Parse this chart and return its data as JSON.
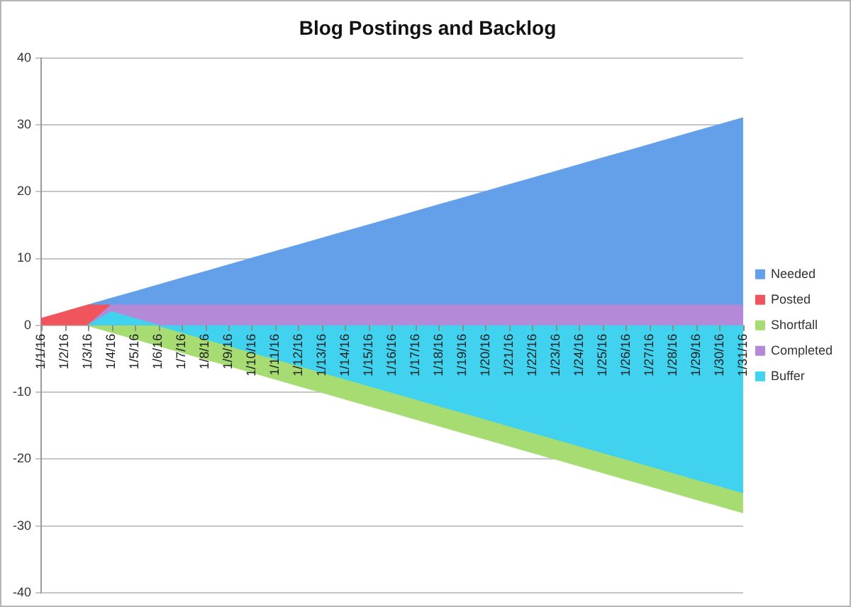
{
  "chart_data": {
    "type": "area",
    "title": "Blog Postings and Backlog",
    "categories": [
      "1/1/16",
      "1/2/16",
      "1/3/16",
      "1/4/16",
      "1/5/16",
      "1/6/16",
      "1/7/16",
      "1/8/16",
      "1/9/16",
      "1/10/16",
      "1/11/16",
      "1/12/16",
      "1/13/16",
      "1/14/16",
      "1/15/16",
      "1/16/16",
      "1/17/16",
      "1/18/16",
      "1/19/16",
      "1/20/16",
      "1/21/16",
      "1/22/16",
      "1/23/16",
      "1/24/16",
      "1/25/16",
      "1/26/16",
      "1/27/16",
      "1/28/16",
      "1/29/16",
      "1/30/16",
      "1/31/16"
    ],
    "series": [
      {
        "name": "Buffer",
        "color": "#40d2ee",
        "values": [
          null,
          null,
          0,
          2,
          1,
          0,
          -1,
          -2,
          -3,
          -4,
          -5,
          -6,
          -7,
          -8,
          -9,
          -10,
          -11,
          -12,
          -13,
          -14,
          -15,
          -16,
          -17,
          -18,
          -19,
          -20,
          -21,
          -22,
          -23,
          -24,
          -25
        ]
      },
      {
        "name": "Completed",
        "color": "#b48ad8",
        "values": [
          null,
          null,
          0,
          3,
          3,
          3,
          3,
          3,
          3,
          3,
          3,
          3,
          3,
          3,
          3,
          3,
          3,
          3,
          3,
          3,
          3,
          3,
          3,
          3,
          3,
          3,
          3,
          3,
          3,
          3,
          3
        ]
      },
      {
        "name": "Shortfall",
        "color": "#a6dc72",
        "values": [
          null,
          null,
          0,
          -1,
          -2,
          -3,
          -4,
          -5,
          -6,
          -7,
          -8,
          -9,
          -10,
          -11,
          -12,
          -13,
          -14,
          -15,
          -16,
          -17,
          -18,
          -19,
          -20,
          -21,
          -22,
          -23,
          -24,
          -25,
          -26,
          -27,
          -28
        ]
      },
      {
        "name": "Posted",
        "color": "#f0545c",
        "values": [
          1,
          2,
          3,
          3,
          null,
          null,
          null,
          null,
          null,
          null,
          null,
          null,
          null,
          null,
          null,
          null,
          null,
          null,
          null,
          null,
          null,
          null,
          null,
          null,
          null,
          null,
          null,
          null,
          null,
          null,
          null
        ]
      },
      {
        "name": "Needed",
        "color": "#64a0ea",
        "values": [
          null,
          null,
          3,
          4,
          5,
          6,
          7,
          8,
          9,
          10,
          11,
          12,
          13,
          14,
          15,
          16,
          17,
          18,
          19,
          20,
          21,
          22,
          23,
          24,
          25,
          26,
          27,
          28,
          29,
          30,
          31
        ]
      }
    ],
    "ylim": [
      -40,
      40
    ],
    "yticks": [
      -40,
      -30,
      -20,
      -10,
      0,
      10,
      20,
      30,
      40
    ],
    "grid": "y",
    "legend": "right"
  }
}
